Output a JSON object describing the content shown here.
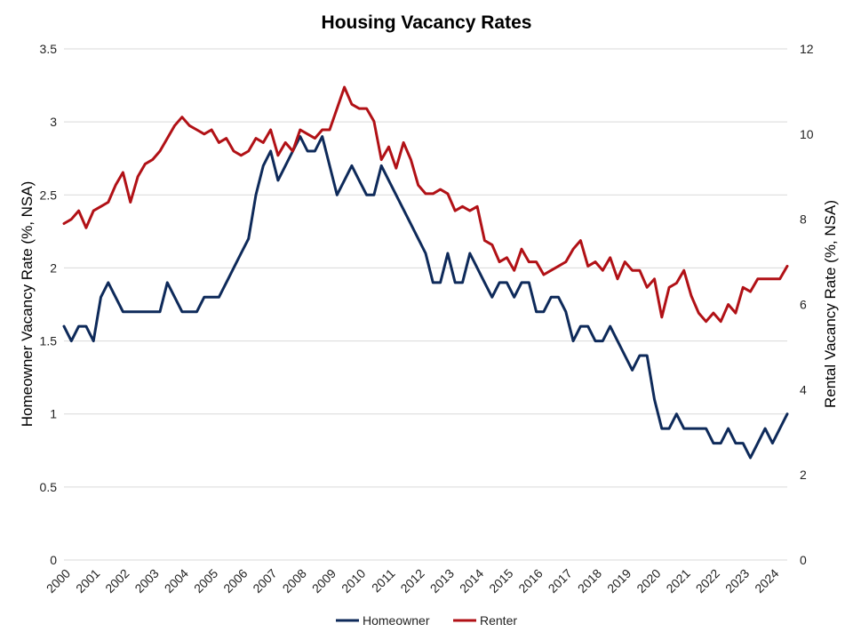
{
  "chart_data": {
    "type": "line",
    "title": "Housing Vacancy Rates",
    "ylabel_left": "Homeowner Vacancy Rate (%, NSA)",
    "ylabel_right": "Rental Vacancy Rate (%, NSA)",
    "xlabel": "",
    "grid": true,
    "legend_position": "bottom",
    "x_tick_labels": [
      "2000",
      "2001",
      "2002",
      "2003",
      "2004",
      "2005",
      "2006",
      "2007",
      "2008",
      "2009",
      "2010",
      "2011",
      "2012",
      "2013",
      "2014",
      "2015",
      "2016",
      "2017",
      "2018",
      "2019",
      "2020",
      "2021",
      "2022",
      "2023",
      "2024"
    ],
    "y_left": {
      "lim": [
        0,
        3.5
      ],
      "ticks": [
        "0",
        "0.5",
        "1",
        "1.5",
        "2",
        "2.5",
        "3",
        "3.5"
      ]
    },
    "y_right": {
      "lim": [
        0,
        12
      ],
      "ticks": [
        "0",
        "2",
        "4",
        "6",
        "8",
        "10",
        "12"
      ]
    },
    "x_start": 2000,
    "points_per_year": 4,
    "series": [
      {
        "name": "Homeowner",
        "axis": "left",
        "color": "#0e2a5a",
        "values": [
          1.6,
          1.5,
          1.6,
          1.6,
          1.5,
          1.8,
          1.9,
          1.8,
          1.7,
          1.7,
          1.7,
          1.7,
          1.7,
          1.7,
          1.9,
          1.8,
          1.7,
          1.7,
          1.7,
          1.8,
          1.8,
          1.8,
          1.9,
          2.0,
          2.1,
          2.2,
          2.5,
          2.7,
          2.8,
          2.6,
          2.7,
          2.8,
          2.9,
          2.8,
          2.8,
          2.9,
          2.7,
          2.5,
          2.6,
          2.7,
          2.6,
          2.5,
          2.5,
          2.7,
          2.6,
          2.5,
          2.4,
          2.3,
          2.2,
          2.1,
          1.9,
          1.9,
          2.1,
          1.9,
          1.9,
          2.1,
          2.0,
          1.9,
          1.8,
          1.9,
          1.9,
          1.8,
          1.9,
          1.9,
          1.7,
          1.7,
          1.8,
          1.8,
          1.7,
          1.5,
          1.6,
          1.6,
          1.5,
          1.5,
          1.6,
          1.5,
          1.4,
          1.3,
          1.4,
          1.4,
          1.1,
          0.9,
          0.9,
          1.0,
          0.9,
          0.9,
          0.9,
          0.9,
          0.8,
          0.8,
          0.9,
          0.8,
          0.8,
          0.7,
          0.8,
          0.9,
          0.8,
          0.9,
          1.0
        ]
      },
      {
        "name": "Renter",
        "axis": "right",
        "color": "#b11116",
        "values": [
          7.9,
          8.0,
          8.2,
          7.8,
          8.2,
          8.3,
          8.4,
          8.8,
          9.1,
          8.4,
          9.0,
          9.3,
          9.4,
          9.6,
          9.9,
          10.2,
          10.4,
          10.2,
          10.1,
          10.0,
          10.1,
          9.8,
          9.9,
          9.6,
          9.5,
          9.6,
          9.9,
          9.8,
          10.1,
          9.5,
          9.8,
          9.6,
          10.1,
          10.0,
          9.9,
          10.1,
          10.1,
          10.6,
          11.1,
          10.7,
          10.6,
          10.6,
          10.3,
          9.4,
          9.7,
          9.2,
          9.8,
          9.4,
          8.8,
          8.6,
          8.6,
          8.7,
          8.6,
          8.2,
          8.3,
          8.2,
          8.3,
          7.5,
          7.4,
          7.0,
          7.1,
          6.8,
          7.3,
          7.0,
          7.0,
          6.7,
          6.8,
          6.9,
          7.0,
          7.3,
          7.5,
          6.9,
          7.0,
          6.8,
          7.1,
          6.6,
          7.0,
          6.8,
          6.8,
          6.4,
          6.6,
          5.7,
          6.4,
          6.5,
          6.8,
          6.2,
          5.8,
          5.6,
          5.8,
          5.6,
          6.0,
          5.8,
          6.4,
          6.3,
          6.6,
          6.6,
          6.6,
          6.6,
          6.9
        ]
      }
    ]
  }
}
